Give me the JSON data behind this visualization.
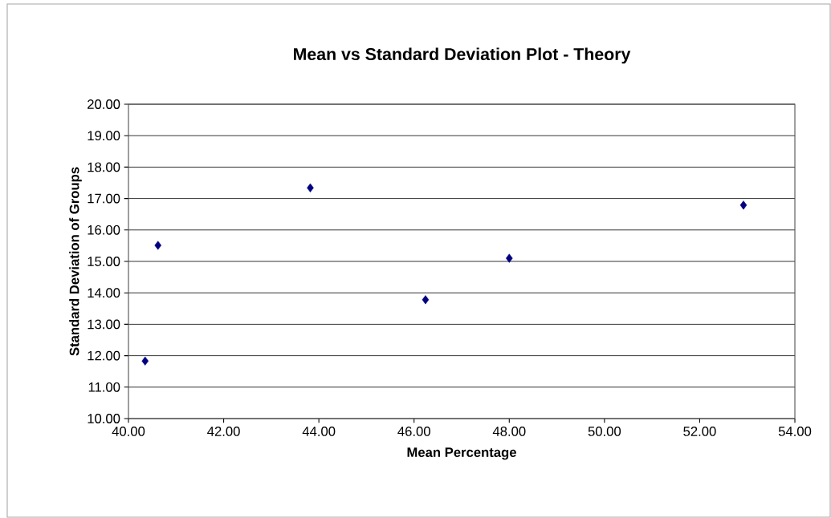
{
  "chart_data": {
    "type": "scatter",
    "title": "Mean vs Standard Deviation Plot  -  Theory",
    "xlabel": "Mean Percentage",
    "ylabel": "Standard Deviation of Groups",
    "x": [
      40.35,
      40.62,
      43.82,
      46.24,
      48.0,
      52.92
    ],
    "values": [
      11.83,
      15.51,
      17.34,
      13.78,
      15.1,
      16.79
    ],
    "color": "#000080",
    "marker": "diamond",
    "grid": "y",
    "xlim": [
      40,
      54
    ],
    "ylim": [
      10,
      20
    ],
    "xticks": [
      {
        "value": 40,
        "label": "40.00"
      },
      {
        "value": 42,
        "label": "42.00"
      },
      {
        "value": 44,
        "label": "44.00"
      },
      {
        "value": 46,
        "label": "46.00"
      },
      {
        "value": 48,
        "label": "48.00"
      },
      {
        "value": 50,
        "label": "50.00"
      },
      {
        "value": 52,
        "label": "52.00"
      },
      {
        "value": 54,
        "label": "54.00"
      }
    ],
    "yticks": [
      {
        "value": 10,
        "label": "10.00"
      },
      {
        "value": 11,
        "label": "11.00"
      },
      {
        "value": 12,
        "label": "12.00"
      },
      {
        "value": 13,
        "label": "13.00"
      },
      {
        "value": 14,
        "label": "14.00"
      },
      {
        "value": 15,
        "label": "15.00"
      },
      {
        "value": 16,
        "label": "16.00"
      },
      {
        "value": 17,
        "label": "17.00"
      },
      {
        "value": 18,
        "label": "18.00"
      },
      {
        "value": 19,
        "label": "19.00"
      },
      {
        "value": 20,
        "label": "20.00"
      }
    ]
  }
}
